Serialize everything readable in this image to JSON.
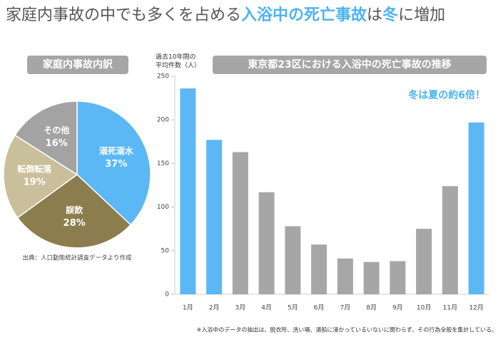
{
  "header": {
    "title": [
      {
        "text": "家庭内事故の中でも多くを占める",
        "color": "#555555"
      },
      {
        "text": "入浴中の死亡事故",
        "color": "#4db3f0"
      },
      {
        "text": "は",
        "color": "#555555"
      },
      {
        "text": "冬",
        "color": "#4db3f0"
      },
      {
        "text": "に増加",
        "color": "#555555"
      }
    ]
  },
  "chart_data": [
    {
      "type": "pie",
      "title": "家庭内事故内訳",
      "categories": [
        "溺死溺水",
        "誤飲",
        "転倒転落",
        "その他"
      ],
      "values": [
        37,
        28,
        19,
        16
      ],
      "value_labels": [
        "37%",
        "28%",
        "19%",
        "16%"
      ],
      "colors": [
        "#5bb8f5",
        "#8c7d4f",
        "#c9bf9a",
        "#a3a3a3"
      ],
      "source": "出典：人口動態統計調査データより作成"
    },
    {
      "type": "bar",
      "title": "東京都23区における入浴中の死亡事故の推移",
      "y_label": [
        "過去10年間の",
        "平均件数（人）"
      ],
      "annotation": "冬は夏の約6倍！",
      "categories": [
        "1月",
        "2月",
        "3月",
        "4月",
        "5月",
        "6月",
        "7月",
        "8月",
        "9月",
        "10月",
        "11月",
        "12月"
      ],
      "values": [
        236,
        177,
        163,
        117,
        78,
        57,
        41,
        37,
        38,
        75,
        124,
        197
      ],
      "colors": [
        "#5bb8f5",
        "#5bb8f5",
        "#a6a6a6",
        "#a6a6a6",
        "#a6a6a6",
        "#a6a6a6",
        "#a6a6a6",
        "#a6a6a6",
        "#a6a6a6",
        "#a6a6a6",
        "#a6a6a6",
        "#5bb8f5"
      ],
      "ylim": [
        0,
        250
      ],
      "yticks": [
        0,
        50,
        100,
        150,
        200,
        250
      ],
      "footnote": "※入浴中のデータの抽出は、脱衣所、洗い場、湯船に浸かっているいないに関わらず、その行為全般を集計している。"
    }
  ]
}
